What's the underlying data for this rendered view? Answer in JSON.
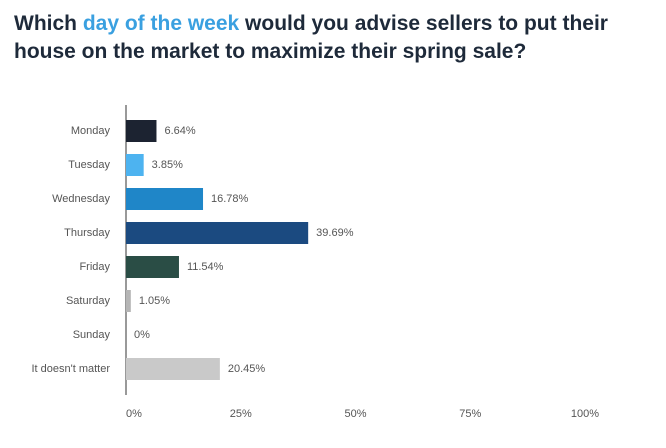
{
  "chart_data": {
    "type": "hbar",
    "title_parts": [
      "Which ",
      "day of the week",
      " would you advise sellers to put their house on the market to maximize their spring sale?"
    ],
    "title_colors": [
      "#1e2a3a",
      "#3aa0e0",
      "#1e2a3a"
    ],
    "categories": [
      "Monday",
      "Tuesday",
      "Wednesday",
      "Thursday",
      "Friday",
      "Saturday",
      "Sunday",
      "It doesn't matter"
    ],
    "values": [
      6.64,
      3.85,
      16.78,
      39.69,
      11.54,
      1.05,
      0,
      20.45
    ],
    "value_labels": [
      "6.64%",
      "3.85%",
      "16.78%",
      "39.69%",
      "11.54%",
      "1.05%",
      "0%",
      "20.45%"
    ],
    "colors": [
      "#1c2331",
      "#4db3f0",
      "#1f86c8",
      "#1b4a80",
      "#2a4d45",
      "#b5b5b5",
      "#b5b5b5",
      "#c9c9c9"
    ],
    "xlim": [
      0,
      100
    ],
    "xticks": [
      {
        "value": 0,
        "label": "0%"
      },
      {
        "value": 25,
        "label": "25%"
      },
      {
        "value": 50,
        "label": "50%"
      },
      {
        "value": 75,
        "label": "75%"
      },
      {
        "value": 100,
        "label": "100%"
      }
    ]
  }
}
